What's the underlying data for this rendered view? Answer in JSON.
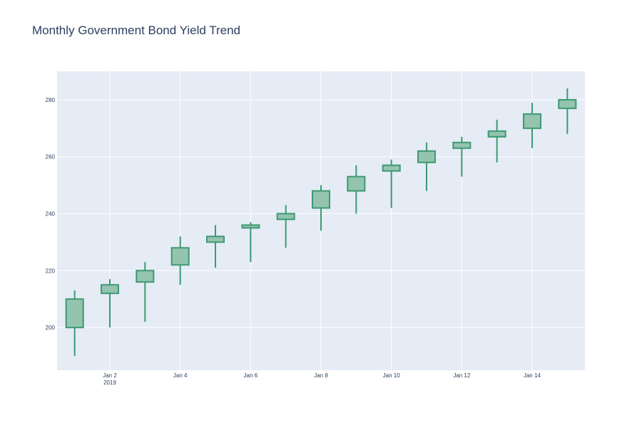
{
  "chart_data": {
    "type": "candlestick",
    "title": "Monthly Government Bond Yield Trend",
    "xlabel": "",
    "ylabel": "",
    "x": [
      "2019-01-01",
      "2019-01-02",
      "2019-01-03",
      "2019-01-04",
      "2019-01-05",
      "2019-01-06",
      "2019-01-07",
      "2019-01-08",
      "2019-01-09",
      "2019-01-10",
      "2019-01-11",
      "2019-01-12",
      "2019-01-13",
      "2019-01-14",
      "2019-01-15"
    ],
    "open": [
      200,
      212,
      216,
      222,
      230,
      235,
      238,
      242,
      248,
      255,
      258,
      263,
      267,
      270,
      277
    ],
    "high": [
      213,
      217,
      223,
      232,
      236,
      237,
      243,
      250,
      257,
      259,
      265,
      267,
      273,
      279,
      284
    ],
    "low": [
      190,
      200,
      202,
      215,
      221,
      223,
      228,
      234,
      240,
      242,
      248,
      253,
      258,
      263,
      268
    ],
    "close": [
      210,
      215,
      220,
      228,
      232,
      236,
      240,
      248,
      253,
      257,
      262,
      265,
      269,
      275,
      280
    ],
    "x_ticks": [
      {
        "x": "2019-01-02",
        "label": "Jan 2",
        "sublabel": "2019"
      },
      {
        "x": "2019-01-04",
        "label": "Jan 4"
      },
      {
        "x": "2019-01-06",
        "label": "Jan 6"
      },
      {
        "x": "2019-01-08",
        "label": "Jan 8"
      },
      {
        "x": "2019-01-10",
        "label": "Jan 10"
      },
      {
        "x": "2019-01-12",
        "label": "Jan 12"
      },
      {
        "x": "2019-01-14",
        "label": "Jan 14"
      }
    ],
    "y_ticks": [
      200,
      220,
      240,
      260,
      280
    ],
    "xlim": [
      "2018-12-31 12:00",
      "2019-01-15 12:00"
    ],
    "ylim": [
      185,
      290
    ],
    "grid": true,
    "increasing_color": "#3d9970",
    "increasing_fill": "#94c4b0",
    "plot_bg": "#e5ecf6"
  }
}
